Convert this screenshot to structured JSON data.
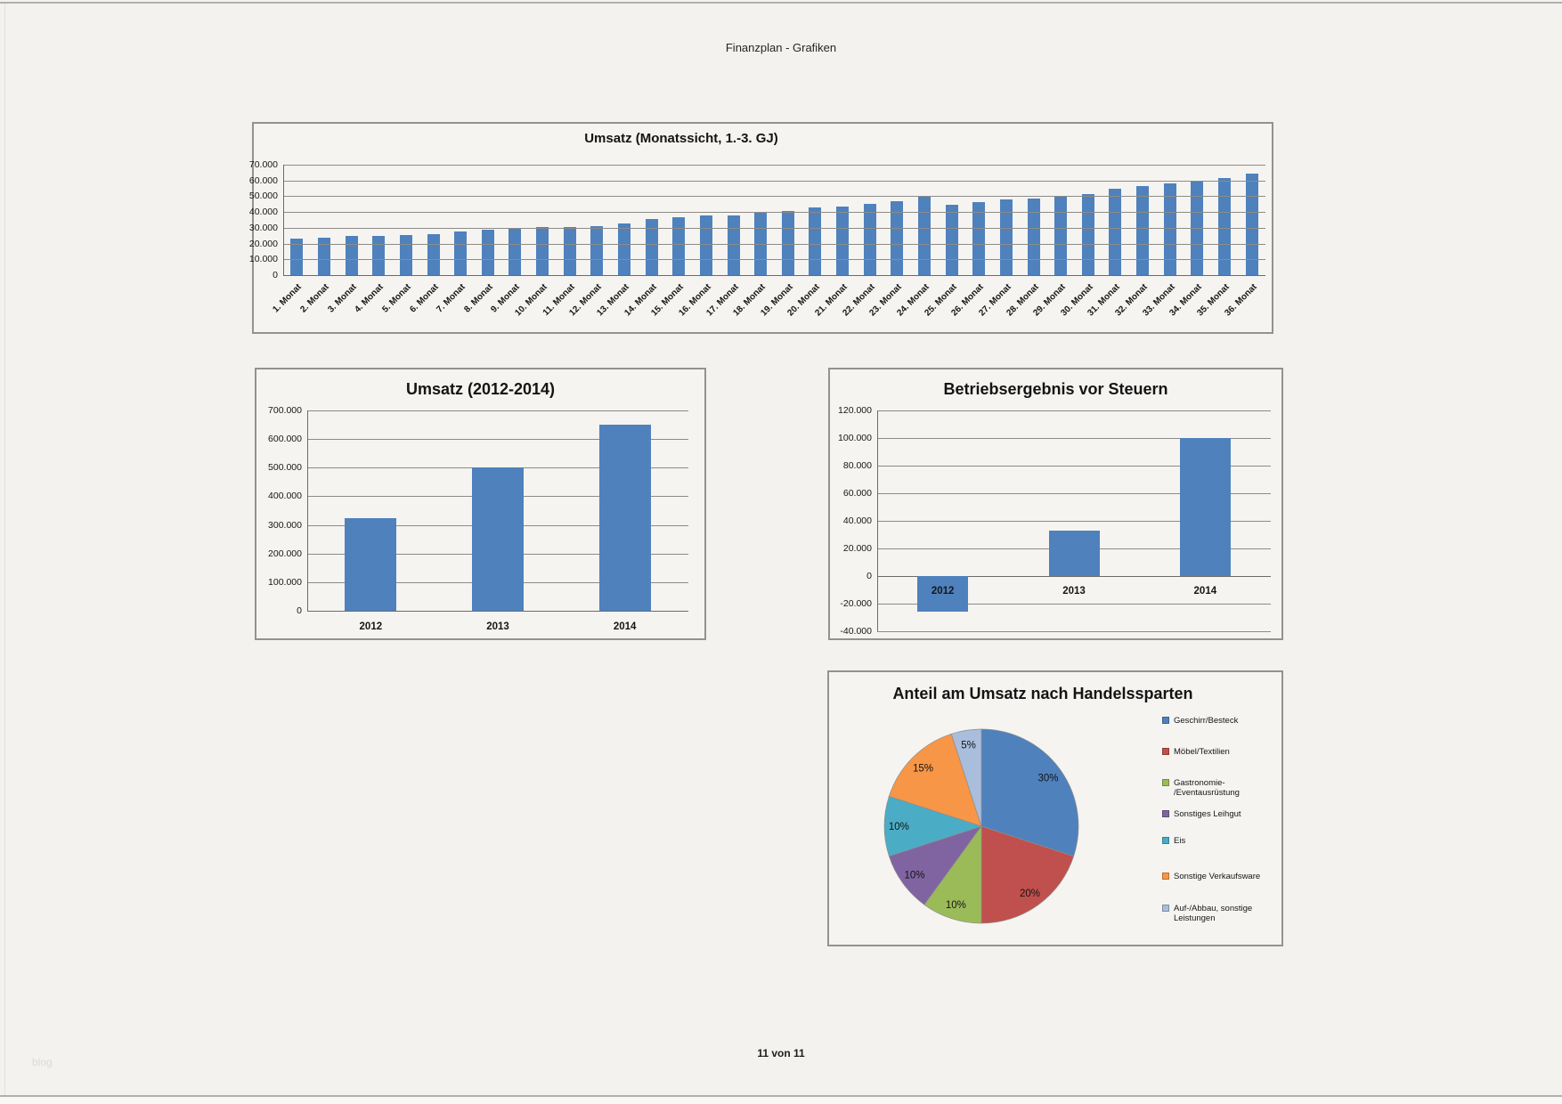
{
  "page": {
    "header_title": "Finanzplan - Grafiken",
    "footer": "11 von 11",
    "watermark": "blog"
  },
  "colors": {
    "bar": "#4F81BD",
    "grid": "#8d8b88",
    "pie_palette": [
      "#4F81BD",
      "#C0504D",
      "#9BBB59",
      "#8064A2",
      "#4BACC6",
      "#F79646",
      "#A9BDDD"
    ]
  },
  "chart_data": [
    {
      "id": "umsatz_monatssicht",
      "type": "bar",
      "title": "Umsatz (Monatssicht, 1.-3. GJ)",
      "categories": [
        "1. Monat",
        "2. Monat",
        "3. Monat",
        "4. Monat",
        "5. Monat",
        "6. Monat",
        "7. Monat",
        "8. Monat",
        "9. Monat",
        "10. Monat",
        "11. Monat",
        "12. Monat",
        "13. Monat",
        "14. Monat",
        "15. Monat",
        "16. Monat",
        "17. Monat",
        "18. Monat",
        "19. Monat",
        "20. Monat",
        "21. Monat",
        "22. Monat",
        "23. Monat",
        "24. Monat",
        "25. Monat",
        "26. Monat",
        "27. Monat",
        "28. Monat",
        "29. Monat",
        "30. Monat",
        "31. Monat",
        "32. Monat",
        "33. Monat",
        "34. Monat",
        "35. Monat",
        "36. Monat"
      ],
      "values": [
        23000,
        23900,
        24800,
        24800,
        25400,
        26000,
        27600,
        28800,
        30000,
        30400,
        30400,
        31000,
        32600,
        35400,
        36600,
        37600,
        37600,
        40200,
        40400,
        42800,
        43600,
        45400,
        46800,
        49600,
        44800,
        46400,
        48200,
        48600,
        50200,
        51600,
        54800,
        56400,
        58000,
        59600,
        61800,
        64600
      ],
      "ylim": [
        0,
        70000
      ],
      "ytick_step": 10000,
      "ytick_labels": [
        "0",
        "10.000",
        "20.000",
        "30.000",
        "40.000",
        "50.000",
        "60.000",
        "70.000"
      ],
      "grid": true,
      "legend_position": "none",
      "bar_color": "#4F81BD",
      "xlabel": "",
      "ylabel": ""
    },
    {
      "id": "umsatz_jahre",
      "type": "bar",
      "title": "Umsatz (2012-2014)",
      "categories": [
        "2012",
        "2013",
        "2014"
      ],
      "values": [
        325000,
        500000,
        650000
      ],
      "ylim": [
        0,
        700000
      ],
      "ytick_step": 100000,
      "ytick_labels": [
        "0",
        "100.000",
        "200.000",
        "300.000",
        "400.000",
        "500.000",
        "600.000",
        "700.000"
      ],
      "grid": true,
      "legend_position": "none",
      "bar_color": "#4F81BD",
      "xlabel": "",
      "ylabel": ""
    },
    {
      "id": "betriebsergebnis",
      "type": "bar",
      "title": "Betriebsergebnis vor Steuern",
      "categories": [
        "2012",
        "2013",
        "2014"
      ],
      "values": [
        -26000,
        33000,
        100000
      ],
      "ylim": [
        -40000,
        120000
      ],
      "ytick_step": 20000,
      "ytick_labels": [
        "-40.000",
        "-20.000",
        "0",
        "20.000",
        "40.000",
        "60.000",
        "80.000",
        "100.000",
        "120.000"
      ],
      "grid": true,
      "legend_position": "none",
      "bar_color": "#4F81BD",
      "xlabel": "",
      "ylabel": ""
    },
    {
      "id": "anteil_handelssparten",
      "type": "pie",
      "title": "Anteil am Umsatz nach Handelssparten",
      "start_angle": "top",
      "direction": "clockwise",
      "legend_position": "right",
      "slices": [
        {
          "label": "Geschirr/Besteck",
          "legend_lines": [
            "Geschirr/Besteck"
          ],
          "value": 30,
          "pct_label": "30%",
          "color": "#4F81BD"
        },
        {
          "label": "Möbel/Textilien",
          "legend_lines": [
            "Möbel/Textilien"
          ],
          "value": 20,
          "pct_label": "20%",
          "color": "#C0504D"
        },
        {
          "label": "Gastronomie-/Eventausrüstung",
          "legend_lines": [
            "Gastronomie-",
            "/Eventausrüstung"
          ],
          "value": 10,
          "pct_label": "10%",
          "color": "#9BBB59"
        },
        {
          "label": "Sonstiges Leihgut",
          "legend_lines": [
            "Sonstiges Leihgut"
          ],
          "value": 10,
          "pct_label": "10%",
          "color": "#8064A2"
        },
        {
          "label": "Eis",
          "legend_lines": [
            "Eis"
          ],
          "value": 10,
          "pct_label": "10%",
          "color": "#4BACC6"
        },
        {
          "label": "Sonstige Verkaufsware",
          "legend_lines": [
            "Sonstige Verkaufsware"
          ],
          "value": 15,
          "pct_label": "15%",
          "color": "#F79646"
        },
        {
          "label": "Auf-/Abbau, sonstige Leistungen",
          "legend_lines": [
            "Auf-/Abbau, sonstige",
            "Leistungen"
          ],
          "value": 5,
          "pct_label": "5%",
          "color": "#A9BDDD"
        }
      ]
    }
  ]
}
